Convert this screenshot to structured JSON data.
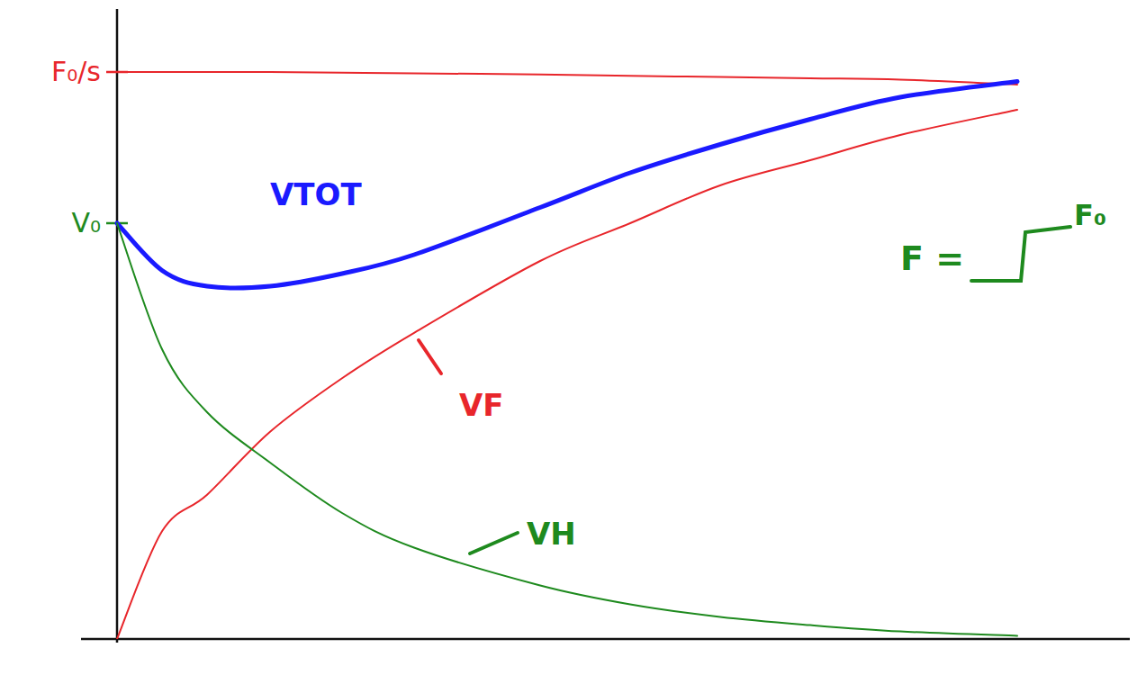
{
  "chart_data": {
    "type": "line",
    "x": [
      0,
      0.5,
      1,
      1.7,
      2.5,
      3.3,
      4.7,
      5.7,
      6.7,
      7.7,
      8.7,
      10
    ],
    "series": [
      {
        "color": "#e8262b",
        "values": [
          9,
          9,
          9,
          9,
          8.99,
          8.98,
          8.96,
          8.94,
          8.92,
          8.9,
          8.88,
          8.8
        ]
      },
      {
        "name": "VTOT",
        "color": "#1a1aff",
        "values": [
          6.6,
          5.85,
          5.6,
          5.6,
          5.8,
          6.1,
          6.85,
          7.4,
          7.85,
          8.25,
          8.6,
          8.85
        ]
      },
      {
        "name": "VF",
        "color": "#e8262b",
        "values": [
          0,
          1.71,
          2.29,
          3.29,
          4.14,
          4.86,
          6.0,
          6.6,
          7.2,
          7.6,
          8.0,
          8.4
        ]
      },
      {
        "name": "VH",
        "color": "#1e8a1e",
        "values": [
          6.6,
          4.6,
          3.6,
          2.8,
          2.0,
          1.45,
          0.85,
          0.55,
          0.35,
          0.22,
          0.12,
          0.05
        ]
      }
    ],
    "xlim": [
      0,
      10
    ],
    "ylim": [
      0,
      10
    ],
    "xticks": [],
    "yticks": [
      {
        "value": 9,
        "label": "F₀/s"
      },
      {
        "value": 6.6,
        "label": "V₀"
      }
    ],
    "annotations": [
      "F =",
      "F₀"
    ],
    "grid": false
  }
}
